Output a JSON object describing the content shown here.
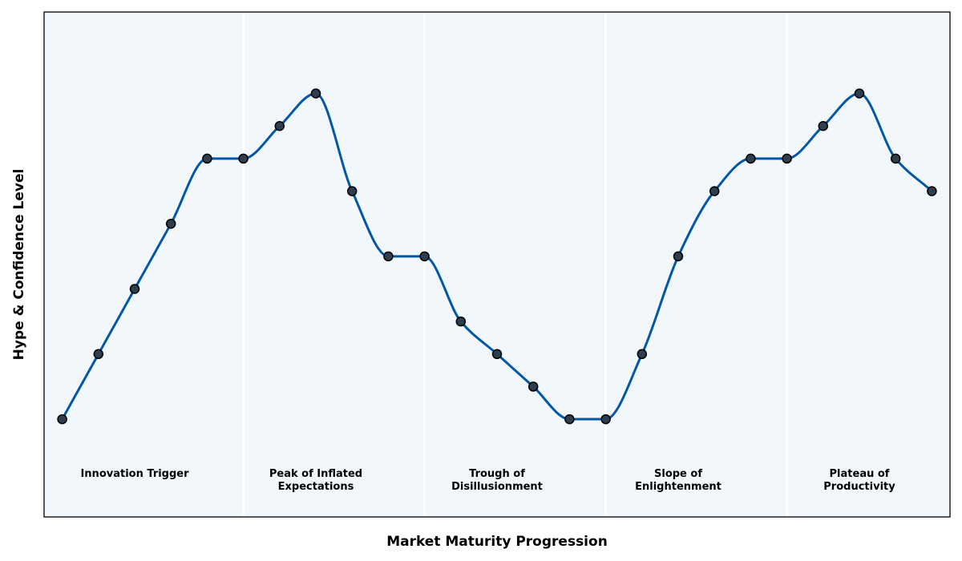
{
  "chart_data": {
    "type": "line",
    "title": "",
    "xlabel": "Market Maturity Progression",
    "ylabel": "Hype & Confidence Level",
    "xlim": [
      -0.5,
      24.5
    ],
    "ylim": [
      1.0,
      16.5
    ],
    "grid": false,
    "series": [
      {
        "x": [
          0,
          1,
          2,
          3,
          4,
          5,
          6,
          7,
          8,
          9,
          10,
          11,
          12,
          13,
          14,
          15,
          16,
          17,
          18,
          19,
          20,
          21,
          22,
          23,
          24
        ],
        "values": [
          4,
          6,
          8,
          10,
          12,
          12,
          13,
          14,
          11,
          9,
          9,
          7,
          6,
          5,
          4,
          4,
          6,
          9,
          11,
          12,
          12,
          13,
          14,
          12,
          11
        ]
      }
    ],
    "phases": [
      {
        "label": "Innovation Trigger",
        "start": -0.5,
        "end": 5.0,
        "center": 2
      },
      {
        "label": "Peak of Inflated\nExpectations",
        "start": 5.0,
        "end": 10.0,
        "center": 7
      },
      {
        "label": "Trough of\nDisillusionment",
        "start": 10.0,
        "end": 15.0,
        "center": 12
      },
      {
        "label": "Slope of\nEnlightenment",
        "start": 15.0,
        "end": 20.0,
        "center": 17
      },
      {
        "label": "Plateau of\nProductivity",
        "start": 20.0,
        "end": 24.5,
        "center": 22
      }
    ],
    "colors": {
      "line": "#0457a6",
      "marker_fill": "#2f3e4e",
      "marker_edge": "#000000",
      "plot_background": "#f2f7fb",
      "phase_separator": "#ffffff",
      "frame": "#222222"
    }
  }
}
